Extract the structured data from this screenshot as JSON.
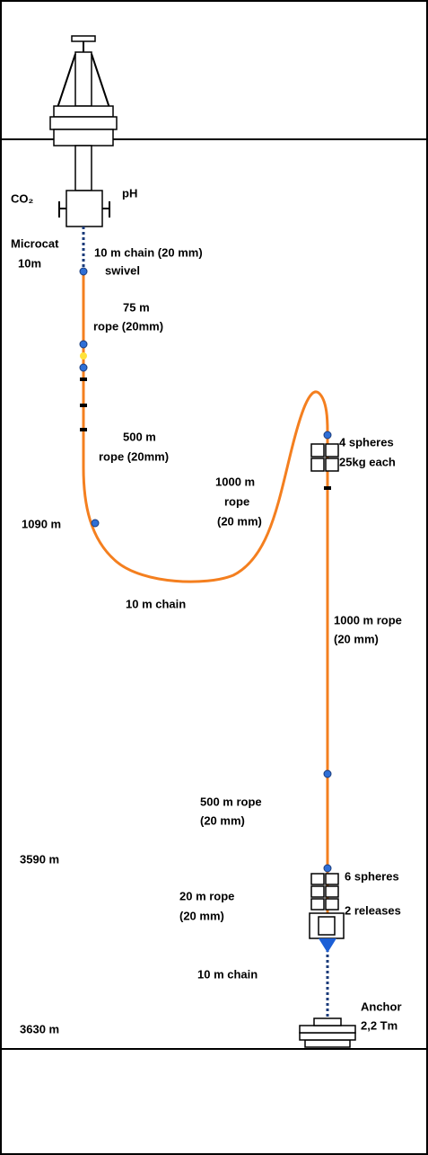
{
  "labels": {
    "co2": "CO₂",
    "ph": "pH",
    "microcat": "Microcat",
    "microcat_depth": "10m",
    "chain_top": "10 m chain (20 mm)",
    "swivel": "swivel",
    "rope75_a": "75 m",
    "rope75_b": "rope (20mm)",
    "rope500_a": "500 m",
    "rope500_b": "rope (20mm)",
    "rope1000_a": "1000 m",
    "rope1000_b": "rope",
    "rope1000_c": "(20 mm)",
    "spheres4_a": "4 spheres",
    "spheres4_b": "25kg each",
    "depth1090": "1090 m",
    "chain_mid": "10 m chain",
    "rope1000r_a": "1000 m rope",
    "rope1000r_b": "(20 mm)",
    "rope500r_a": "500 m rope",
    "rope500r_b": "(20 mm)",
    "depth3590": "3590 m",
    "spheres6": "6 spheres",
    "rope20_a": "20 m rope",
    "rope20_b": "(20 mm)",
    "releases": "2 releases",
    "chain_bottom": "10 m chain",
    "anchor_a": "Anchor",
    "anchor_b": "2,2 Tm",
    "depth3630": "3630 m"
  }
}
